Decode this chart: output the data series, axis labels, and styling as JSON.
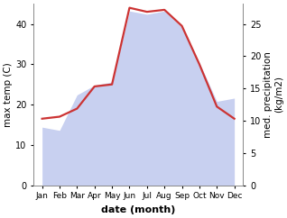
{
  "months": [
    "Jan",
    "Feb",
    "Mar",
    "Apr",
    "May",
    "Jun",
    "Jul",
    "Aug",
    "Sep",
    "Oct",
    "Nov",
    "Dec"
  ],
  "month_indices": [
    1,
    2,
    3,
    4,
    5,
    6,
    7,
    8,
    9,
    10,
    11,
    12
  ],
  "max_temp": [
    16.5,
    17.0,
    19.0,
    24.5,
    25.0,
    44.0,
    43.0,
    43.5,
    39.5,
    30.0,
    19.5,
    16.5
  ],
  "precipitation": [
    9.0,
    8.5,
    14.0,
    15.5,
    16.0,
    27.0,
    26.5,
    27.0,
    24.5,
    19.0,
    13.0,
    13.5
  ],
  "temp_color": "#cc3333",
  "precip_fill_color": "#c8d0f0",
  "left_ylim": [
    0,
    45
  ],
  "right_ylim": [
    0,
    28.125
  ],
  "left_yticks": [
    0,
    10,
    20,
    30,
    40
  ],
  "right_yticks": [
    0,
    5,
    10,
    15,
    20,
    25
  ],
  "ylabel_left": "max temp (C)",
  "ylabel_right": "med. precipitation\n(kg/m2)",
  "xlabel": "date (month)",
  "figsize": [
    3.18,
    2.42
  ],
  "dpi": 100,
  "temp_linewidth": 1.6,
  "label_fontsize": 7.5,
  "tick_fontsize": 7,
  "xlabel_fontsize": 8
}
